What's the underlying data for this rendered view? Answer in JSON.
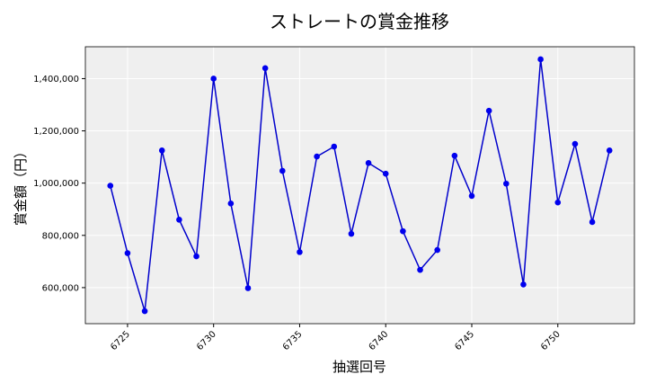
{
  "chart_data": {
    "type": "line",
    "title": "ストレートの賞金推移",
    "xlabel": "抽選回号",
    "ylabel": "賞金額（円）",
    "x": [
      6724,
      6725,
      6726,
      6727,
      6728,
      6729,
      6730,
      6731,
      6732,
      6733,
      6734,
      6735,
      6736,
      6737,
      6738,
      6739,
      6740,
      6741,
      6742,
      6743,
      6744,
      6745,
      6746,
      6747,
      6748,
      6749,
      6750,
      6751,
      6752,
      6753
    ],
    "series": [
      {
        "values": [
          990000,
          732000,
          510000,
          1125000,
          860000,
          720000,
          1400000,
          922000,
          598000,
          1440000,
          1047000,
          736000,
          1102000,
          1140000,
          806000,
          1077000,
          1036000,
          816000,
          668000,
          744000,
          1105000,
          951000,
          1277000,
          998000,
          612000,
          1474000,
          926000,
          1150000,
          851000,
          1125000
        ]
      }
    ],
    "xticks": [
      6725,
      6730,
      6735,
      6740,
      6745,
      6750
    ],
    "yticks": [
      600000,
      800000,
      1000000,
      1200000,
      1400000
    ],
    "ytick_labels": [
      "600,000",
      "800,000",
      "1,000,000",
      "1,200,000",
      "1,400,000"
    ],
    "xlim": [
      6722.55,
      6754.45
    ],
    "ylim": [
      462000,
      1522000
    ],
    "grid": true,
    "colors": {
      "line": "#0000cc",
      "marker": "#0000ee",
      "plot_bg": "#efefef",
      "grid": "#ffffff"
    }
  }
}
